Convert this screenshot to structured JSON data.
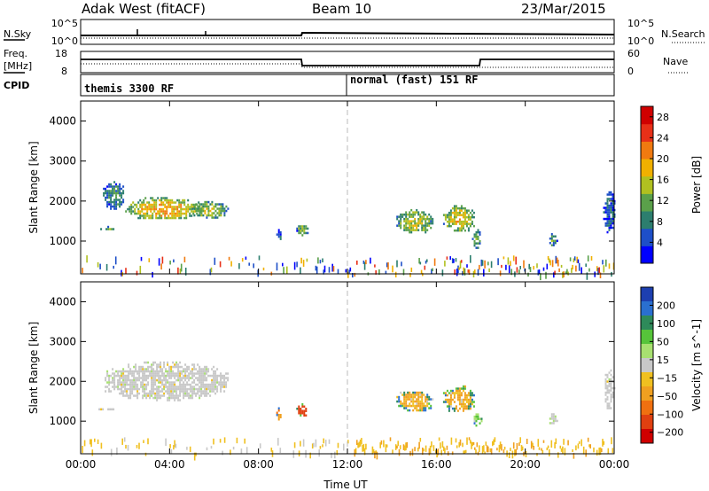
{
  "header": {
    "station": "Adak West (fitACF)",
    "beam": "Beam 10",
    "date": "23/Mar/2015"
  },
  "panels": {
    "nsky_label": "N.Sky",
    "nsearch_label": "N.Search",
    "freq_label": "Freq.",
    "freq_unit": "[MHz]",
    "nave_label": "Nave",
    "cpid_label": "CPID",
    "cpid_modes": [
      "themis 3300 RF",
      "normal (fast) 151 RF"
    ],
    "nsky_ticks": [
      "10^5",
      "10^0"
    ],
    "nsearch_ticks": [
      "10^5",
      "10^0"
    ],
    "freq_ticks": [
      "18",
      "8"
    ],
    "nave_ticks": [
      "60",
      "0"
    ]
  },
  "chart_data": [
    {
      "type": "heatmap",
      "title": "",
      "xlabel": "",
      "ylabel": "Slant Range [km]",
      "xticks": [
        "00:00",
        "04:00",
        "08:00",
        "12:00",
        "16:00",
        "20:00",
        "00:00"
      ],
      "xlim_hours": [
        0,
        24
      ],
      "ylim": [
        180,
        4500
      ],
      "yticks": [
        1000,
        2000,
        3000,
        4000
      ],
      "colorbar": {
        "label": "Power [dB]",
        "ticks": [
          4,
          8,
          12,
          16,
          20,
          24,
          28
        ],
        "range": [
          0,
          30
        ],
        "colors": [
          "#0000ff",
          "#1e4fc8",
          "#2c7e6e",
          "#5aa04a",
          "#b0c020",
          "#f0b000",
          "#f07a10",
          "#e83018",
          "#d00000"
        ]
      },
      "echo_regions": [
        {
          "t_start": 1.0,
          "t_end": 2.0,
          "r_min": 1800,
          "r_max": 2500,
          "power": 8
        },
        {
          "t_start": 2.0,
          "t_end": 5.5,
          "r_min": 1550,
          "r_max": 2100,
          "power": 18
        },
        {
          "t_start": 5.0,
          "t_end": 6.6,
          "r_min": 1600,
          "r_max": 2000,
          "power": 14
        },
        {
          "t_start": 0.8,
          "t_end": 1.5,
          "r_min": 1280,
          "r_max": 1380,
          "power": 10
        },
        {
          "t_start": 9.7,
          "t_end": 10.2,
          "r_min": 1150,
          "r_max": 1450,
          "power": 12
        },
        {
          "t_start": 8.8,
          "t_end": 9.0,
          "r_min": 1000,
          "r_max": 1300,
          "power": 6
        },
        {
          "t_start": 14.2,
          "t_end": 15.8,
          "r_min": 1200,
          "r_max": 1800,
          "power": 14
        },
        {
          "t_start": 16.3,
          "t_end": 17.7,
          "r_min": 1250,
          "r_max": 1900,
          "power": 16
        },
        {
          "t_start": 17.6,
          "t_end": 18.0,
          "r_min": 800,
          "r_max": 1300,
          "power": 10
        },
        {
          "t_start": 21.0,
          "t_end": 21.4,
          "r_min": 900,
          "r_max": 1200,
          "power": 10
        },
        {
          "t_start": 23.5,
          "t_end": 24.0,
          "r_min": 1200,
          "r_max": 2300,
          "power": 6
        }
      ],
      "near_range_clutter": {
        "r_min": 200,
        "r_max": 650
      }
    },
    {
      "type": "heatmap",
      "title": "",
      "xlabel": "Time UT",
      "ylabel": "Slant Range [km]",
      "xticks": [
        "00:00",
        "04:00",
        "08:00",
        "12:00",
        "16:00",
        "20:00",
        "00:00"
      ],
      "xlim_hours": [
        0,
        24
      ],
      "ylim": [
        180,
        4500
      ],
      "yticks": [
        1000,
        2000,
        3000,
        4000
      ],
      "colorbar": {
        "label": "Velocity [m s^-1]",
        "tick_labels": [
          "200",
          "100",
          "50",
          "15",
          "−15",
          "−50",
          "−100",
          "−200"
        ],
        "colors": [
          "#1d3fb0",
          "#2a6fd0",
          "#2e8a5a",
          "#56c43a",
          "#a8e070",
          "#c8c8c8",
          "#f0c020",
          "#f0a020",
          "#f07010",
          "#e04010",
          "#d00000"
        ]
      },
      "echo_regions": [
        {
          "t_start": 1.0,
          "t_end": 6.6,
          "r_min": 1550,
          "r_max": 2500,
          "category": "ground_scatter"
        },
        {
          "t_start": 0.8,
          "t_end": 1.5,
          "r_min": 1280,
          "r_max": 1380,
          "category": "ground_scatter"
        },
        {
          "t_start": 8.8,
          "t_end": 9.0,
          "r_min": 1050,
          "r_max": 1350,
          "velocity": -60
        },
        {
          "t_start": 9.7,
          "t_end": 10.2,
          "r_min": 1150,
          "r_max": 1450,
          "velocity": -150
        },
        {
          "t_start": 14.2,
          "t_end": 15.8,
          "r_min": 1250,
          "r_max": 1800,
          "velocity": -40
        },
        {
          "t_start": 16.3,
          "t_end": 17.7,
          "r_min": 1250,
          "r_max": 1900,
          "velocity": -40
        },
        {
          "t_start": 17.6,
          "t_end": 18.0,
          "r_min": 900,
          "r_max": 1250,
          "velocity": 30
        },
        {
          "t_start": 21.0,
          "t_end": 21.4,
          "r_min": 950,
          "r_max": 1200,
          "category": "ground_scatter"
        },
        {
          "t_start": 23.5,
          "t_end": 24.0,
          "r_min": 1300,
          "r_max": 2300,
          "category": "ground_scatter"
        }
      ],
      "near_range_clutter": {
        "r_min": 200,
        "r_max": 600
      }
    }
  ],
  "timeline_series": {
    "cpid_switch_hours": [
      12.0
    ],
    "freq_mhz": [
      {
        "t_start": 0,
        "t_end": 10.0,
        "value": 11.5
      },
      {
        "t_start": 10.0,
        "t_end": 18.0,
        "value": 9.6
      },
      {
        "t_start": 18.0,
        "t_end": 24.0,
        "value": 11.5
      }
    ],
    "nave": [
      {
        "t_start": 0,
        "t_end": 10.0,
        "value": 15
      },
      {
        "t_start": 10.0,
        "t_end": 24.0,
        "value": 11
      }
    ]
  }
}
